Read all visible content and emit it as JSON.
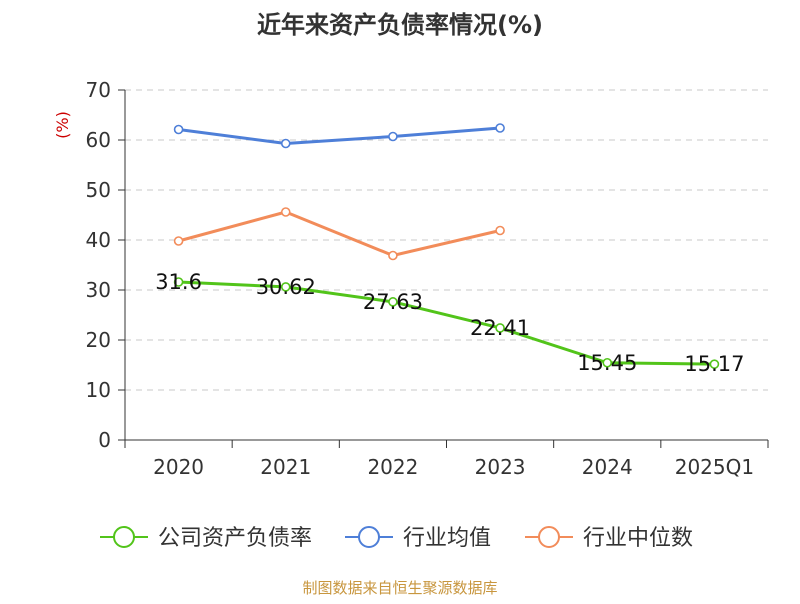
{
  "chart_data": {
    "type": "line",
    "title": "近年来资产负债率情况(%)",
    "ylabel": "(%)",
    "xlabel": "",
    "categories": [
      "2020",
      "2021",
      "2022",
      "2023",
      "2024",
      "2025Q1"
    ],
    "ylim": [
      0,
      70
    ],
    "yticks": [
      0,
      10,
      20,
      30,
      40,
      50,
      60,
      70
    ],
    "grid": true,
    "legend_position": "bottom",
    "series": [
      {
        "name": "公司资产负债率",
        "color": "#52c41a",
        "labels": true,
        "values": [
          31.6,
          30.62,
          27.63,
          22.41,
          15.45,
          15.17
        ]
      },
      {
        "name": "行业均值",
        "color": "#4e7fd8",
        "labels": false,
        "values": [
          62.1,
          59.3,
          60.7,
          62.4,
          null,
          null
        ]
      },
      {
        "name": "行业中位数",
        "color": "#f28c5a",
        "labels": false,
        "values": [
          39.8,
          45.6,
          36.9,
          41.9,
          null,
          null
        ]
      }
    ]
  },
  "source": "制图数据来自恒生聚源数据库",
  "colors": {
    "title": "#333333",
    "ylabel": "#cc0000",
    "source": "#c8963e",
    "axis": "#333333",
    "grid": "#c8c8c8"
  }
}
